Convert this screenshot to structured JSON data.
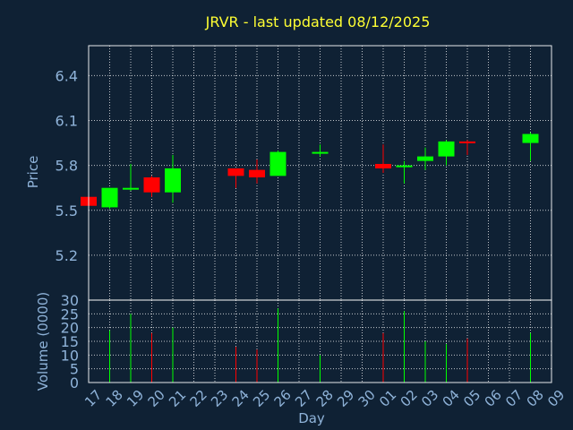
{
  "chart_data": {
    "type": "candlestick",
    "title": "JRVR - last updated 08/12/2025",
    "price_axis": {
      "label": "Price",
      "range": [
        4.9,
        6.6
      ],
      "ticks": [
        "5.2",
        "5.5",
        "5.8",
        "6.1",
        "6.4"
      ],
      "tick_values": [
        5.2,
        5.5,
        5.8,
        6.1,
        6.4
      ]
    },
    "volume_axis": {
      "label": "Volume (0000)",
      "range": [
        0,
        30
      ],
      "ticks": [
        "0",
        "5",
        "10",
        "15",
        "20",
        "25",
        "30"
      ],
      "tick_values": [
        0,
        5,
        10,
        15,
        20,
        25,
        30
      ]
    },
    "x_axis": {
      "label": "Day",
      "ticks": [
        "17",
        "18",
        "19",
        "20",
        "21",
        "22",
        "23",
        "24",
        "25",
        "26",
        "27",
        "28",
        "29",
        "30",
        "01",
        "02",
        "03",
        "04",
        "05",
        "06",
        "07",
        "08",
        "09"
      ]
    },
    "grid": true,
    "colors": {
      "up": "#00ff00",
      "down": "#ff0000",
      "background": "#0f2134",
      "axis_text": "#8fb3d9",
      "title": "#ffff33",
      "grid": "#ffffff"
    },
    "candles": [
      {
        "day": "17",
        "open": 5.59,
        "high": 5.59,
        "low": 5.53,
        "close": 5.53,
        "volume": 0
      },
      {
        "day": "18",
        "open": 5.52,
        "high": 5.65,
        "low": 5.51,
        "close": 5.65,
        "volume": 19
      },
      {
        "day": "19",
        "open": 5.64,
        "high": 5.81,
        "low": 5.63,
        "close": 5.65,
        "volume": 25
      },
      {
        "day": "20",
        "open": 5.72,
        "high": 5.73,
        "low": 5.59,
        "close": 5.62,
        "volume": 18
      },
      {
        "day": "21",
        "open": 5.62,
        "high": 5.87,
        "low": 5.55,
        "close": 5.78,
        "volume": 20
      },
      {
        "day": "24",
        "open": 5.78,
        "high": 5.78,
        "low": 5.65,
        "close": 5.73,
        "volume": 13
      },
      {
        "day": "25",
        "open": 5.77,
        "high": 5.84,
        "low": 5.68,
        "close": 5.72,
        "volume": 12
      },
      {
        "day": "26",
        "open": 5.73,
        "high": 5.9,
        "low": 5.73,
        "close": 5.89,
        "volume": 27
      },
      {
        "day": "28",
        "open": 5.88,
        "high": 5.94,
        "low": 5.86,
        "close": 5.89,
        "volume": 10
      },
      {
        "day": "01",
        "open": 5.81,
        "high": 5.94,
        "low": 5.75,
        "close": 5.78,
        "volume": 18
      },
      {
        "day": "02",
        "open": 5.79,
        "high": 5.83,
        "low": 5.68,
        "close": 5.8,
        "volume": 26
      },
      {
        "day": "03",
        "open": 5.83,
        "high": 5.92,
        "low": 5.77,
        "close": 5.86,
        "volume": 15
      },
      {
        "day": "04",
        "open": 5.86,
        "high": 5.97,
        "low": 5.8,
        "close": 5.96,
        "volume": 14
      },
      {
        "day": "05",
        "open": 5.96,
        "high": 5.97,
        "low": 5.87,
        "close": 5.95,
        "volume": 16
      },
      {
        "day": "08",
        "open": 5.95,
        "high": 6.02,
        "low": 5.83,
        "close": 6.01,
        "volume": 18
      }
    ]
  }
}
